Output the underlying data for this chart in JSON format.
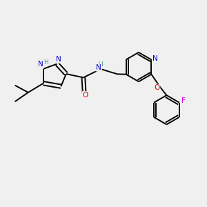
{
  "bg_color": "#f0f0f0",
  "bond_color": "#000000",
  "bond_width": 1.4,
  "N_color": "#0000cc",
  "O_color": "#cc0000",
  "F_color": "#dd00dd",
  "H_color": "#4a9090",
  "figsize": [
    3.0,
    3.0
  ],
  "dpi": 100,
  "xlim": [
    0,
    10
  ],
  "ylim": [
    0,
    10
  ]
}
